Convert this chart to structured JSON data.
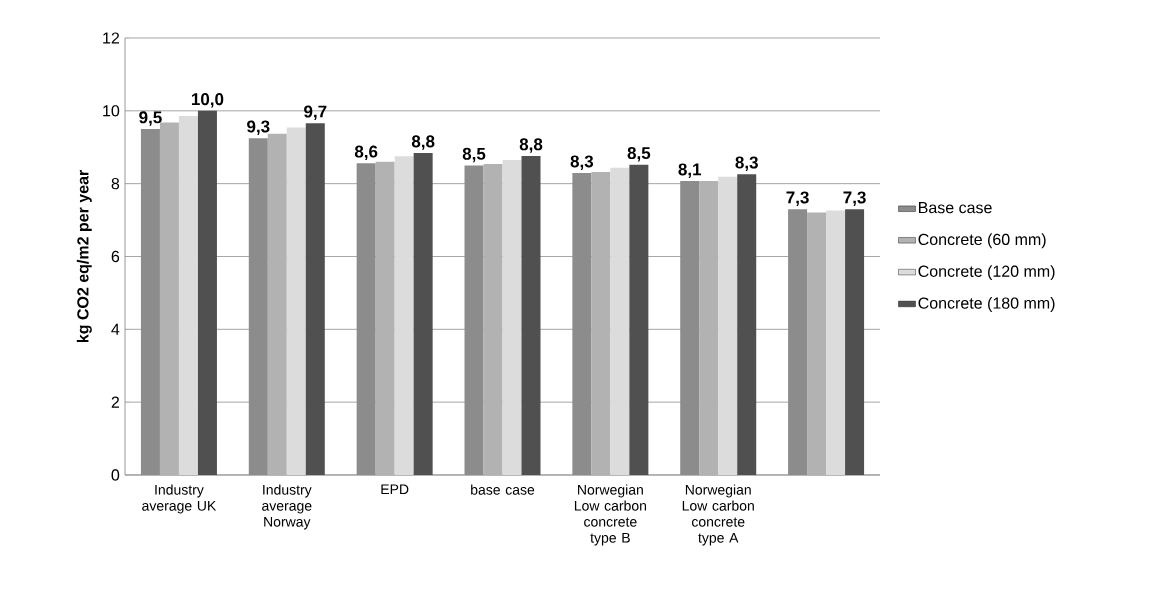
{
  "chart_data": {
    "type": "bar",
    "ylabel": "kg CO2 eq/m2 per year",
    "categories": [
      "Industry average UK",
      "Industry average Norway",
      "EPD",
      "base case",
      "Norwegian Low carbon concrete type B",
      "Norwegian Low carbon concrete type A",
      null
    ],
    "series": [
      {
        "name": "Base case",
        "color": "#8c8c8c",
        "values": [
          9.5,
          9.25,
          8.56,
          8.5,
          8.29,
          8.07,
          7.3
        ],
        "value_labels": [
          "9,5",
          "9,3",
          "8,6",
          "8,5",
          "8,3",
          "8,1",
          "7,3"
        ]
      },
      {
        "name": "Concrete (60 mm)",
        "color": "#b2b2b2",
        "values": [
          9.68,
          9.37,
          8.6,
          8.54,
          8.32,
          8.07,
          7.21
        ]
      },
      {
        "name": "Concrete (120 mm)",
        "color": "#dcdcdc",
        "values": [
          9.86,
          9.54,
          8.75,
          8.65,
          8.44,
          8.19,
          7.26
        ]
      },
      {
        "name": "Concrete (180 mm)",
        "color": "#505050",
        "values": [
          10.0,
          9.66,
          8.84,
          8.76,
          8.52,
          8.26,
          7.3
        ],
        "value_labels": [
          "10,0",
          "9,7",
          "8,8",
          "8,8",
          "8,5",
          "8,3",
          "7,3"
        ]
      }
    ],
    "ylim": [
      0,
      12
    ],
    "yticks": [
      0,
      2,
      4,
      6,
      8,
      10,
      12
    ],
    "grid": "y",
    "legend": "right"
  }
}
